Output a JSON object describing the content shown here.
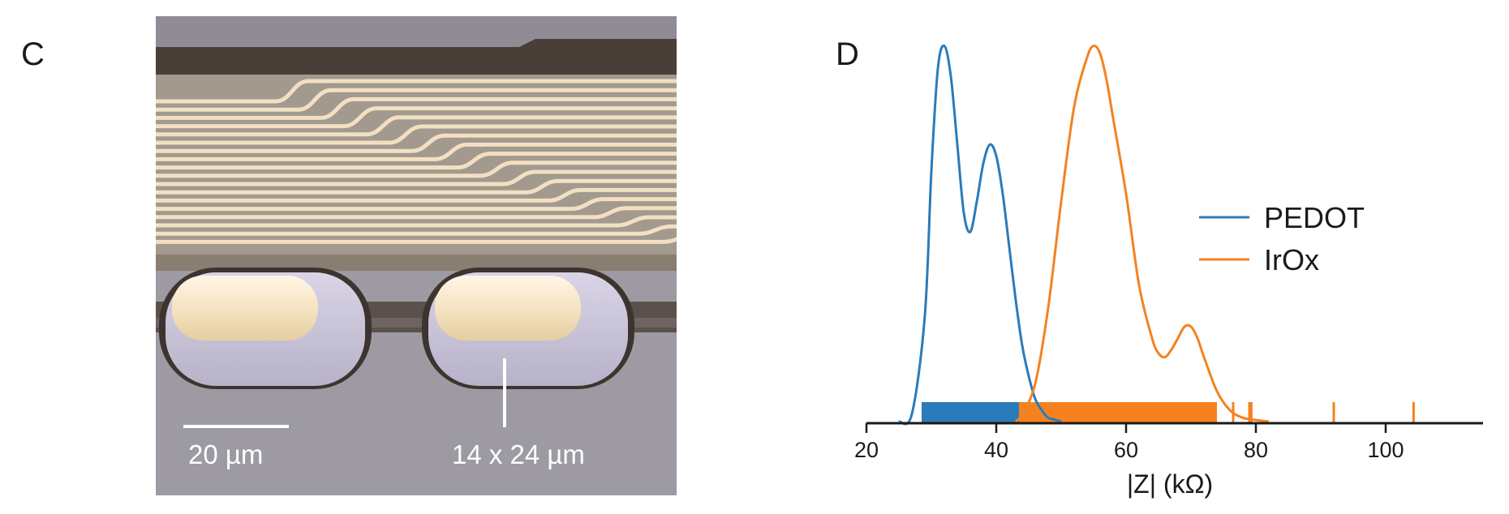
{
  "figure": {
    "panel_c": {
      "label": "C",
      "scale_bar_label": "20 µm",
      "site_size_label": "14 x 24 µm"
    },
    "panel_d": {
      "label": "D"
    }
  },
  "chart_data": {
    "type": "line",
    "title": "",
    "xlabel": "|Z| (kΩ)",
    "ylabel": "",
    "xlim": [
      20,
      115
    ],
    "xticks": [
      20,
      40,
      60,
      80,
      100
    ],
    "ylim": [
      0,
      1
    ],
    "grid": false,
    "legend_position": "right",
    "series": [
      {
        "name": "PEDOT",
        "color": "#2b7bba",
        "x": [
          25,
          27,
          29,
          30,
          31,
          32,
          33,
          34,
          35,
          36,
          37,
          38,
          39,
          40,
          41,
          42,
          43,
          44,
          45,
          46,
          47,
          48,
          49,
          50
        ],
        "y": [
          0.0,
          0.02,
          0.28,
          0.66,
          0.93,
          0.99,
          0.91,
          0.73,
          0.55,
          0.5,
          0.58,
          0.68,
          0.73,
          0.7,
          0.6,
          0.46,
          0.32,
          0.2,
          0.12,
          0.06,
          0.03,
          0.01,
          0.005,
          0.0
        ],
        "rug": [
          [
            28.5,
            43.5
          ]
        ]
      },
      {
        "name": "IrOx",
        "color": "#f5821f",
        "x": [
          43,
          44,
          46,
          48,
          50,
          52,
          54,
          55,
          56,
          57,
          58,
          60,
          62,
          64,
          65,
          66,
          67,
          68,
          69,
          70,
          71,
          72,
          74,
          76,
          78,
          80,
          82
        ],
        "y": [
          0.0,
          0.02,
          0.1,
          0.3,
          0.58,
          0.83,
          0.96,
          0.99,
          0.97,
          0.9,
          0.8,
          0.6,
          0.36,
          0.22,
          0.18,
          0.17,
          0.19,
          0.22,
          0.25,
          0.25,
          0.22,
          0.17,
          0.08,
          0.03,
          0.01,
          0.004,
          0.0
        ],
        "rug": [
          [
            43.5,
            74
          ],
          76.5,
          79,
          79.3,
          92,
          104.3
        ]
      }
    ]
  }
}
